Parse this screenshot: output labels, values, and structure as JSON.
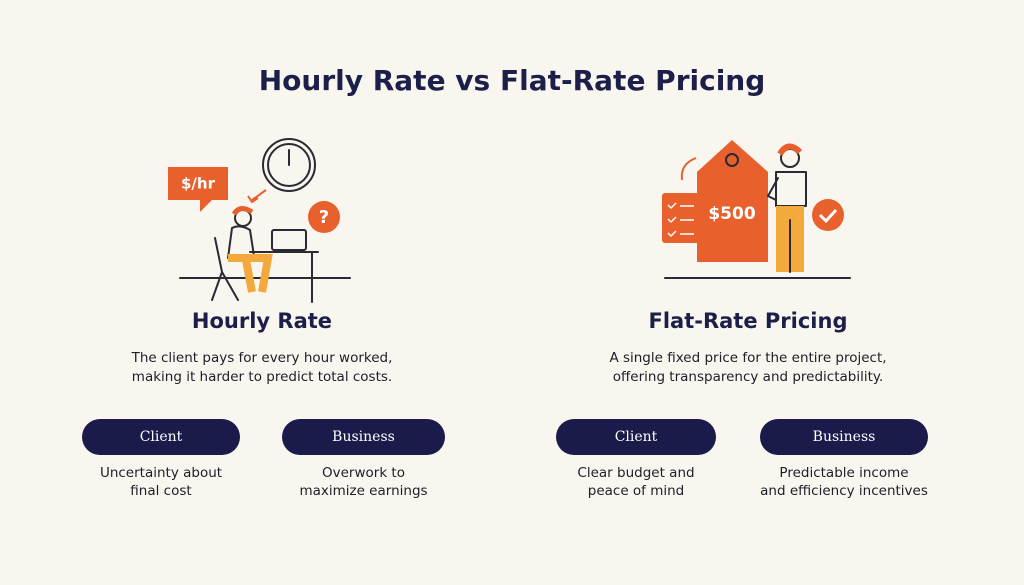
{
  "title": "Hourly Rate vs Flat-Rate Pricing",
  "illustrations": {
    "hourly_badge": "$/hr",
    "hourly_icon": "?",
    "flat_tag": "$500"
  },
  "columns": [
    {
      "heading": "Hourly Rate",
      "description": [
        "The client pays for every hour worked,",
        "making it harder to predict total costs."
      ],
      "pills": [
        {
          "label": "Client",
          "caption": [
            "Uncertainty about",
            "final cost"
          ]
        },
        {
          "label": "Business",
          "caption": [
            "Overwork to",
            "maximize earnings"
          ]
        }
      ]
    },
    {
      "heading": "Flat-Rate Pricing",
      "description": [
        "A single fixed price for the entire project,",
        "offering transparency and predictability."
      ],
      "pills": [
        {
          "label": "Client",
          "caption": [
            "Clear budget and",
            "peace of mind"
          ]
        },
        {
          "label": "Business",
          "caption": [
            "Predictable income",
            "and efficiency incentives"
          ]
        }
      ]
    }
  ]
}
